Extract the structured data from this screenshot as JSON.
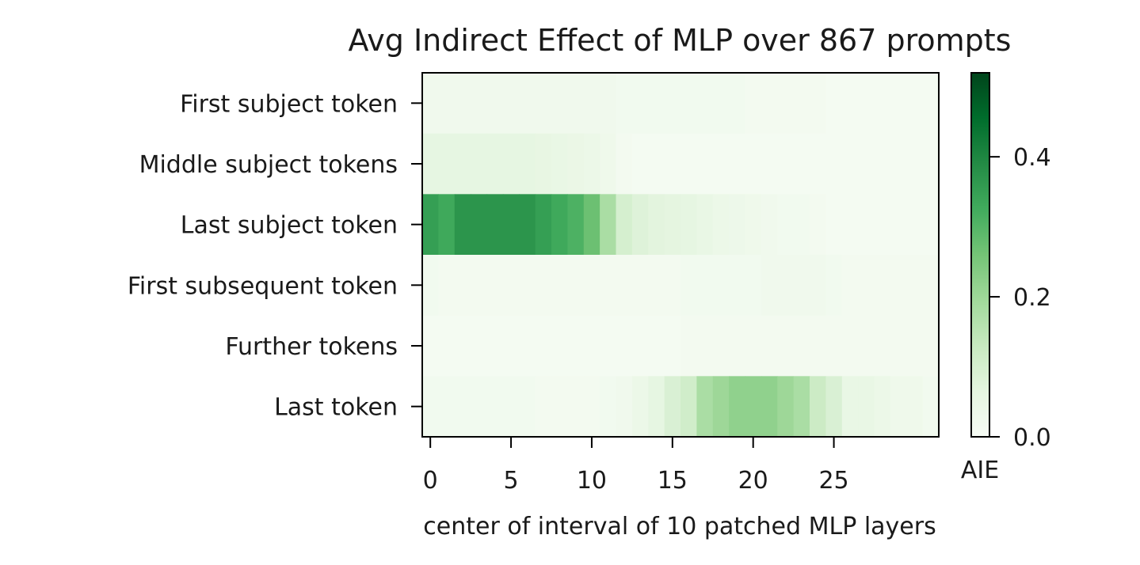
{
  "chart_data": {
    "type": "heatmap",
    "title": "Avg Indirect Effect of MLP over 867 prompts",
    "xlabel": "center of interval of 10 patched MLP layers",
    "ylabel": "",
    "x_tick_labels": [
      "0",
      "5",
      "10",
      "15",
      "20",
      "25"
    ],
    "x_tick_values": [
      0,
      5,
      10,
      15,
      20,
      25
    ],
    "x_range": [
      -0.5,
      31.5
    ],
    "rows": [
      "First subject token",
      "Middle subject tokens",
      "Last subject token",
      "First subsequent token",
      "Further tokens",
      "Last token"
    ],
    "colormap": "Greens",
    "color_min_hex": "#f7fcf5",
    "color_max_hex": "#00441b",
    "colorbar": {
      "label": "AIE",
      "range": [
        0,
        0.52
      ],
      "tick_labels": [
        "0.0",
        "0.2",
        "0.4"
      ],
      "tick_values": [
        0,
        0.2,
        0.4
      ]
    },
    "values": [
      [
        0.025,
        0.025,
        0.025,
        0.025,
        0.025,
        0.025,
        0.025,
        0.025,
        0.025,
        0.025,
        0.025,
        0.025,
        0.02,
        0.02,
        0.02,
        0.02,
        0.02,
        0.02,
        0.02,
        0.02,
        0.015,
        0.015,
        0.015,
        0.015,
        0.015,
        0.01,
        0.01,
        0.01,
        0.01,
        0.01,
        0.01,
        0.01
      ],
      [
        0.06,
        0.06,
        0.06,
        0.06,
        0.06,
        0.06,
        0.06,
        0.055,
        0.05,
        0.045,
        0.04,
        0.03,
        0.015,
        0.01,
        0.01,
        0.01,
        0.01,
        0.01,
        0.01,
        0.01,
        0.01,
        0.01,
        0.01,
        0.01,
        0.01,
        0.01,
        0.01,
        0.01,
        0.01,
        0.01,
        0.01,
        0.01
      ],
      [
        0.35,
        0.33,
        0.37,
        0.37,
        0.37,
        0.37,
        0.37,
        0.35,
        0.33,
        0.31,
        0.27,
        0.18,
        0.1,
        0.08,
        0.07,
        0.065,
        0.06,
        0.05,
        0.04,
        0.035,
        0.03,
        0.025,
        0.02,
        0.02,
        0.015,
        0.01,
        0.01,
        0.01,
        0.01,
        0.01,
        0.01,
        0.01
      ],
      [
        0.02,
        0.015,
        0.015,
        0.015,
        0.015,
        0.015,
        0.015,
        0.015,
        0.015,
        0.015,
        0.015,
        0.015,
        0.015,
        0.015,
        0.015,
        0.015,
        0.02,
        0.02,
        0.02,
        0.02,
        0.02,
        0.025,
        0.025,
        0.025,
        0.025,
        0.02,
        0.015,
        0.015,
        0.015,
        0.015,
        0.015,
        0.015
      ],
      [
        0.01,
        0.01,
        0.01,
        0.01,
        0.01,
        0.01,
        0.01,
        0.01,
        0.01,
        0.01,
        0.01,
        0.01,
        0.01,
        0.01,
        0.01,
        0.01,
        0.015,
        0.015,
        0.015,
        0.015,
        0.015,
        0.015,
        0.015,
        0.015,
        0.015,
        0.015,
        0.015,
        0.015,
        0.015,
        0.015,
        0.015,
        0.015
      ],
      [
        0.02,
        0.02,
        0.02,
        0.02,
        0.02,
        0.02,
        0.02,
        0.015,
        0.015,
        0.015,
        0.015,
        0.02,
        0.025,
        0.04,
        0.06,
        0.09,
        0.11,
        0.18,
        0.2,
        0.22,
        0.22,
        0.22,
        0.2,
        0.18,
        0.12,
        0.09,
        0.05,
        0.05,
        0.04,
        0.03,
        0.03,
        0.02
      ]
    ]
  }
}
